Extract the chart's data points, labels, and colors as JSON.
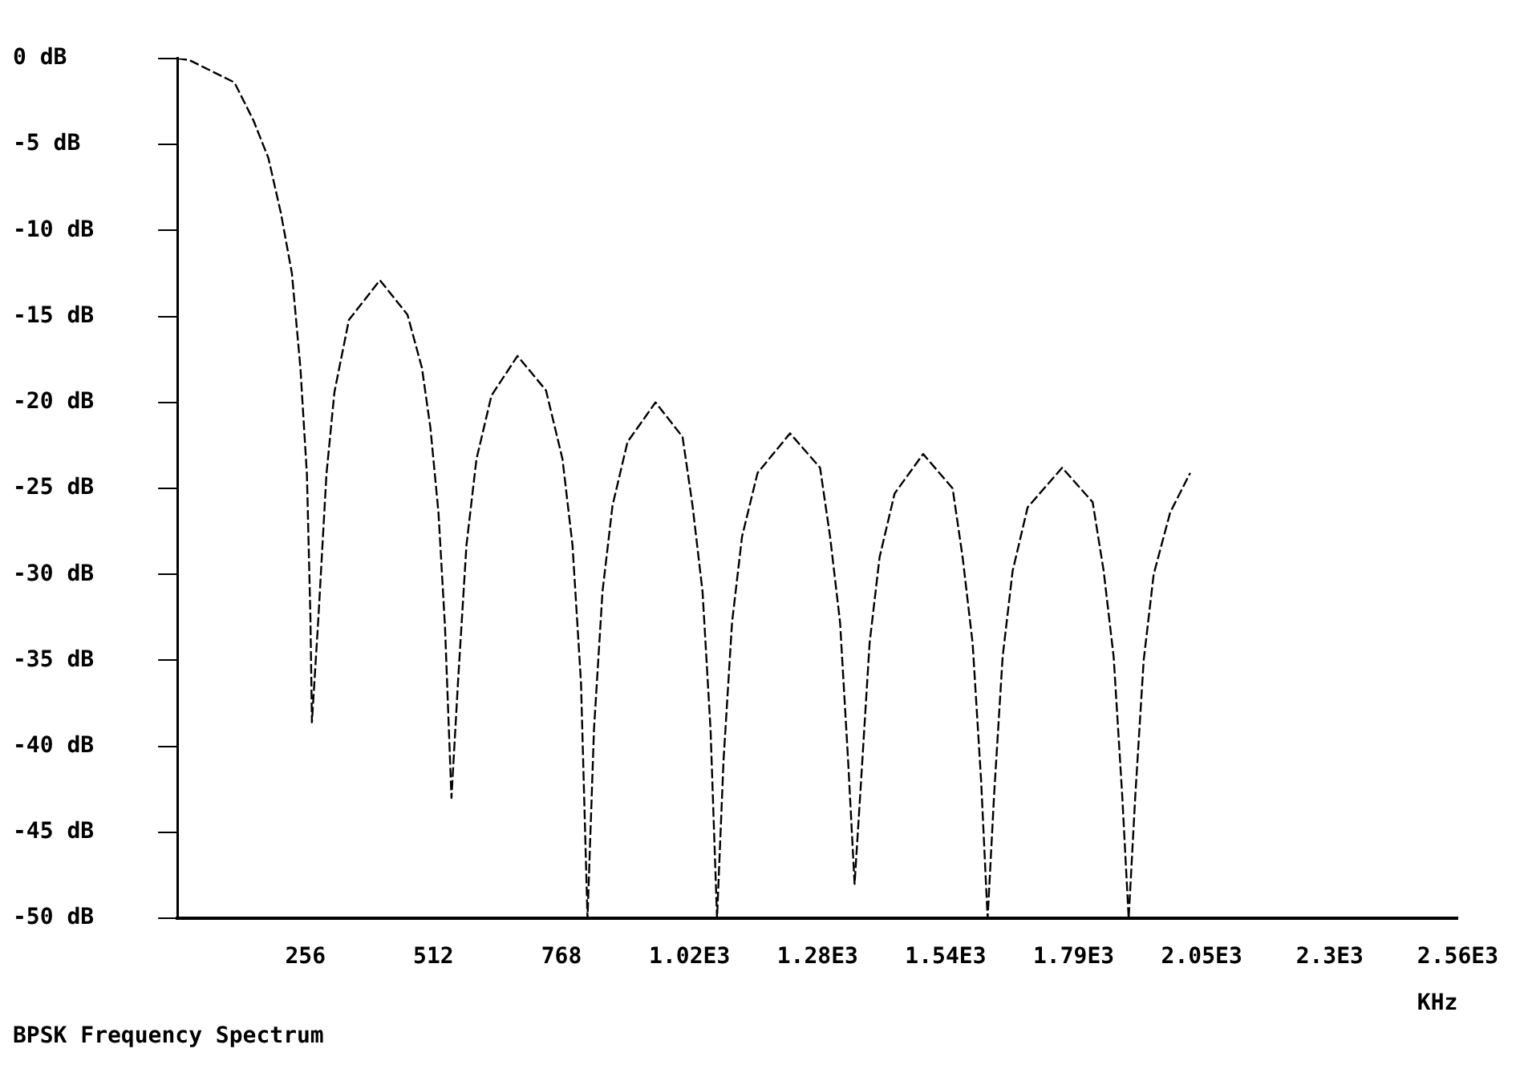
{
  "chart_data": {
    "type": "line",
    "title": "BPSK Frequency Spectrum",
    "xlabel": "KHz",
    "x": [
      0,
      24,
      114,
      152,
      182,
      207,
      229,
      246,
      259,
      266,
      269,
      282,
      298,
      314,
      343,
      405,
      460,
      489,
      506,
      522,
      535,
      548,
      561,
      578,
      598,
      628,
      680,
      737,
      770,
      790,
      807,
      820,
      833,
      850,
      870,
      900,
      956,
      1010,
      1030,
      1050,
      1066,
      1079,
      1092,
      1109,
      1129,
      1160,
      1225,
      1285,
      1305,
      1325,
      1341,
      1354,
      1367,
      1384,
      1404,
      1434,
      1491,
      1550,
      1570,
      1590,
      1607,
      1620,
      1633,
      1650,
      1670,
      1700,
      1769,
      1830,
      1852,
      1872,
      1889,
      1902,
      1915,
      1932,
      1952,
      1985,
      2025
    ],
    "series": [
      {
        "color": "#000000",
        "values": [
          0,
          -0.1,
          -1.4,
          -3.6,
          -5.8,
          -9,
          -12.5,
          -18,
          -24.2,
          -32.5,
          -38.6,
          -32.5,
          -24.2,
          -19.4,
          -15.2,
          -12.9,
          -14.9,
          -18,
          -21.5,
          -26.4,
          -33,
          -43,
          -36.3,
          -28.3,
          -23.3,
          -19.6,
          -17.3,
          -19.3,
          -23.3,
          -28.3,
          -36.3,
          -50,
          -39,
          -31,
          -26,
          -22.3,
          -20,
          -22,
          -26,
          -31,
          -39,
          -50,
          -40.8,
          -32.8,
          -27.8,
          -24.1,
          -21.8,
          -23.8,
          -27.8,
          -32.8,
          -40.8,
          -48,
          -42,
          -34,
          -29,
          -25.3,
          -23,
          -25,
          -29,
          -34,
          -42,
          -50,
          -42.8,
          -34.8,
          -29.8,
          -26.1,
          -23.8,
          -25.8,
          -29.8,
          -34.8,
          -42.8,
          -50,
          -43,
          -35,
          -30,
          -26.4,
          -24.1
        ]
      }
    ],
    "xlim": [
      0,
      2560
    ],
    "xticks": [
      256,
      512,
      768,
      {
        "value": 1024,
        "label": "1.02E3"
      },
      {
        "value": 1280,
        "label": "1.28E3"
      },
      {
        "value": 1536,
        "label": "1.54E3"
      },
      {
        "value": 1792,
        "label": "1.79E3"
      },
      {
        "value": 2048,
        "label": "2.05E3"
      },
      {
        "value": 2304,
        "label": "2.3E3"
      },
      {
        "value": 2560,
        "label": "2.56E3"
      }
    ],
    "ylim": [
      -50,
      0
    ],
    "yticks": [
      {
        "value": 0,
        "label": "0 dB"
      },
      {
        "value": -5,
        "label": "-5 dB"
      },
      {
        "value": -10,
        "label": "-10 dB"
      },
      {
        "value": -15,
        "label": "-15 dB"
      },
      {
        "value": -20,
        "label": "-20 dB"
      },
      {
        "value": -25,
        "label": "-25 dB"
      },
      {
        "value": -30,
        "label": "-30 dB"
      },
      {
        "value": -35,
        "label": "-35 dB"
      },
      {
        "value": -40,
        "label": "-40 dB"
      },
      {
        "value": -45,
        "label": "-45 dB"
      },
      {
        "value": -50,
        "label": "-50 dB"
      }
    ],
    "grid": false,
    "legend": false,
    "marker": "none",
    "line_style": "dashed"
  }
}
